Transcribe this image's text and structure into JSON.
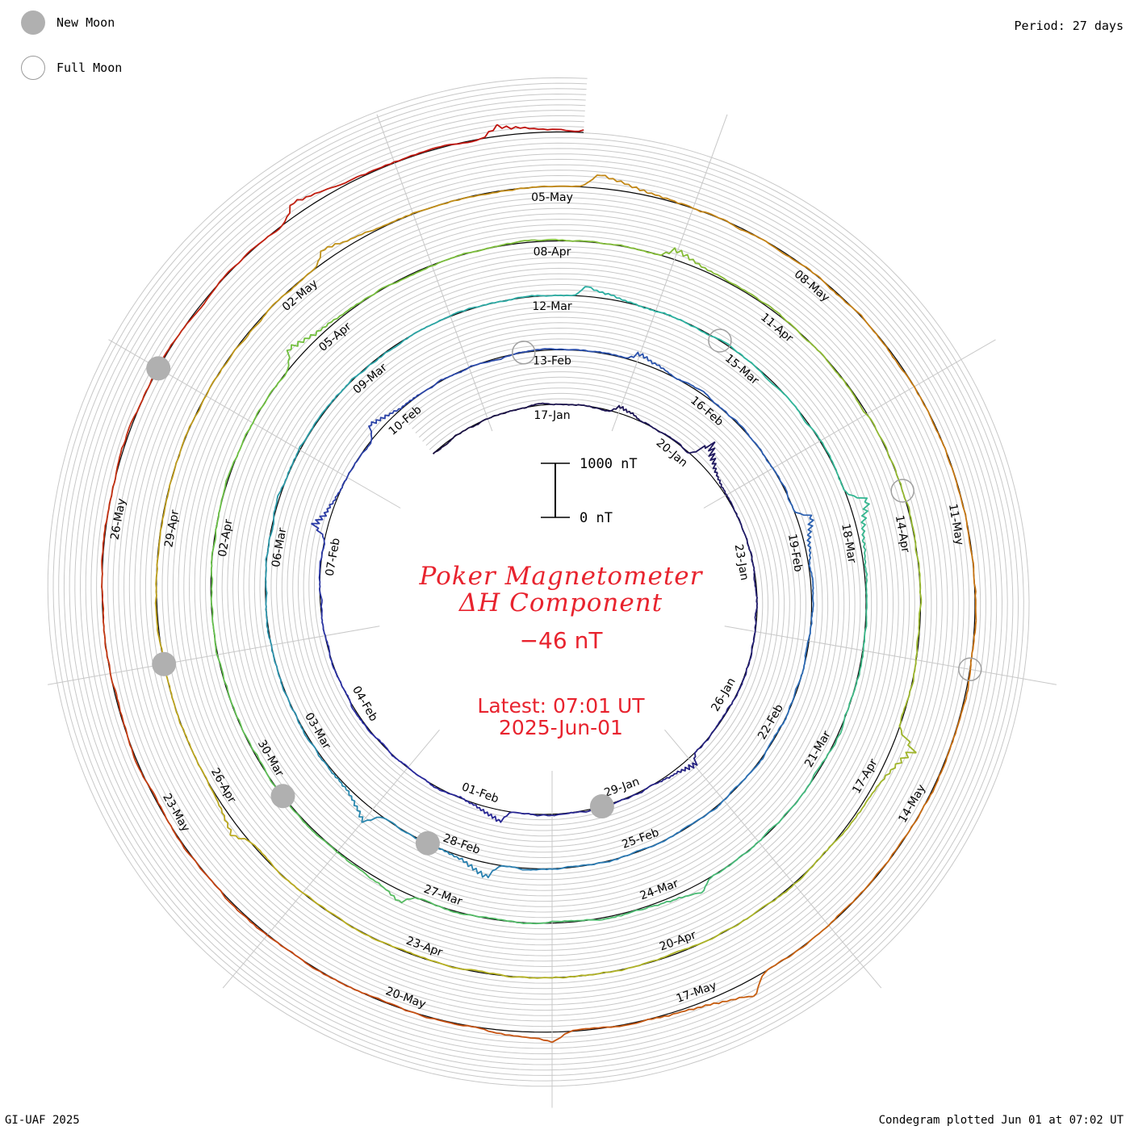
{
  "legend": {
    "new_moon_label": "New Moon",
    "full_moon_label": "Full Moon"
  },
  "period_label": "Period: 27 days",
  "footer_left": "GI-UAF 2025",
  "footer_right": "Condegram plotted Jun 01 at 07:02 UT",
  "scale_bar": {
    "top_label": "1000 nT",
    "bottom_label": "0 nT"
  },
  "center": {
    "title_line1": "Poker Magnetometer",
    "title_line2": "ΔH Component",
    "current_value": "−46 nT",
    "latest_line1": "Latest: 07:01 UT",
    "latest_line2": "2025-Jun-01"
  },
  "colors": {
    "accent_text": "#e8232e",
    "moon_fill": "#b0b0b0",
    "spiral_gradient": [
      "#1a1040",
      "#2a2aa0",
      "#2a6fb5",
      "#2bb5a0",
      "#6cc040",
      "#b8b020",
      "#c87010",
      "#c01010"
    ]
  },
  "chart_data": {
    "type": "line",
    "subtype": "spiral condegram",
    "title": "Poker Magnetometer",
    "subtitle": "ΔH Component",
    "period_days": 27,
    "start_date": "2025-01-14",
    "end_date": "2025-06-01",
    "units": "nT",
    "scale_nT": 1000,
    "grid": true,
    "date_labels": [
      "17-Jan",
      "20-Jan",
      "23-Jan",
      "26-Jan",
      "29-Jan",
      "01-Feb",
      "04-Feb",
      "07-Feb",
      "10-Feb",
      "13-Feb",
      "16-Feb",
      "19-Feb",
      "22-Feb",
      "25-Feb",
      "28-Feb",
      "03-Mar",
      "06-Mar",
      "09-Mar",
      "12-Mar",
      "15-Mar",
      "18-Mar",
      "21-Mar",
      "24-Mar",
      "27-Mar",
      "30-Mar",
      "02-Apr",
      "05-Apr",
      "08-Apr",
      "11-Apr",
      "14-Apr",
      "17-Apr",
      "20-Apr",
      "23-Apr",
      "26-Apr",
      "29-Apr",
      "02-May",
      "05-May",
      "08-May",
      "11-May",
      "14-May",
      "17-May",
      "20-May",
      "23-May",
      "26-May"
    ],
    "new_moons": [
      "2025-01-29",
      "2025-02-28",
      "2025-03-29",
      "2025-04-27",
      "2025-05-27"
    ],
    "full_moons": [
      "2025-02-12",
      "2025-03-14",
      "2025-04-13",
      "2025-05-12"
    ],
    "latest_value_nT": -46,
    "latest_time": "07:01 UT",
    "latest_date": "2025-Jun-01",
    "disturbances": [
      {
        "date": "2025-01-18",
        "peak_nT": -160
      },
      {
        "date": "2025-01-20",
        "peak_nT": -480
      },
      {
        "date": "2025-01-27",
        "peak_nT": -250
      },
      {
        "date": "2025-01-31",
        "peak_nT": -260
      },
      {
        "date": "2025-02-07",
        "peak_nT": -320
      },
      {
        "date": "2025-02-09",
        "peak_nT": -240
      },
      {
        "date": "2025-02-14",
        "peak_nT": -190
      },
      {
        "date": "2025-02-18",
        "peak_nT": -330
      },
      {
        "date": "2025-02-27",
        "peak_nT": -300
      },
      {
        "date": "2025-03-01",
        "peak_nT": -330
      },
      {
        "date": "2025-03-12",
        "peak_nT": -230
      },
      {
        "date": "2025-03-17",
        "peak_nT": -380
      },
      {
        "date": "2025-03-23",
        "peak_nT": -190
      },
      {
        "date": "2025-03-27",
        "peak_nT": -220
      },
      {
        "date": "2025-04-04",
        "peak_nT": -290
      },
      {
        "date": "2025-04-09",
        "peak_nT": -250
      },
      {
        "date": "2025-04-16",
        "peak_nT": -460
      },
      {
        "date": "2025-04-25",
        "peak_nT": -210
      },
      {
        "date": "2025-05-02",
        "peak_nT": -230
      },
      {
        "date": "2025-05-05",
        "peak_nT": -290
      },
      {
        "date": "2025-05-16",
        "peak_nT": -330
      },
      {
        "date": "2025-05-18",
        "peak_nT": -230
      },
      {
        "date": "2025-05-29",
        "peak_nT": -260
      },
      {
        "date": "2025-05-31",
        "peak_nT": -220
      }
    ]
  }
}
